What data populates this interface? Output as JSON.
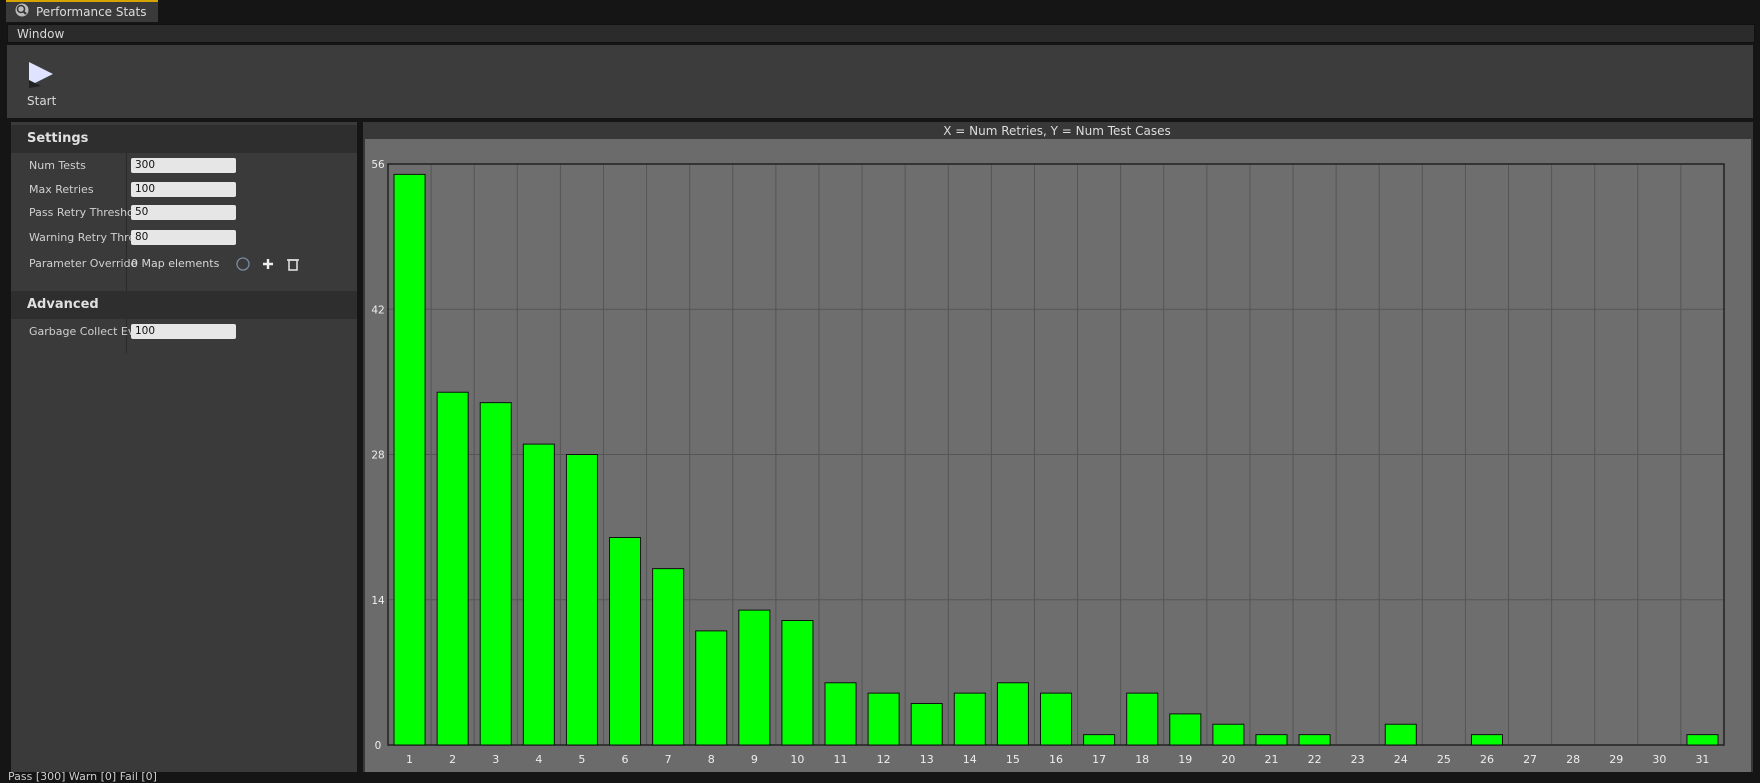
{
  "tab": "Performance Stats",
  "menu": [
    "Window"
  ],
  "toolbar": {
    "button": "Start"
  },
  "settings": {
    "header": "Settings",
    "rows": [
      {
        "label": "Num Tests",
        "value": "300"
      },
      {
        "label": "Max Retries",
        "value": "100"
      },
      {
        "label": "Pass Retry Thresho",
        "value": "50"
      },
      {
        "label": "Warning Retry Thres",
        "value": "80"
      }
    ],
    "override": {
      "label": "Parameter Override",
      "value": "0 Map elements"
    }
  },
  "advanced": {
    "header": "Advanced",
    "rows": [
      {
        "label": "Garbage Collect Eve",
        "value": "100"
      }
    ]
  },
  "status": "Pass [300] Warn [0] Fail [0]",
  "chart_data": {
    "type": "bar",
    "title": "X = Num Retries, Y = Num Test Cases",
    "categories": [
      "1",
      "2",
      "3",
      "4",
      "5",
      "6",
      "7",
      "8",
      "9",
      "10",
      "11",
      "12",
      "13",
      "14",
      "15",
      "16",
      "17",
      "18",
      "19",
      "20",
      "21",
      "22",
      "23",
      "24",
      "25",
      "26",
      "27",
      "28",
      "29",
      "30",
      "31"
    ],
    "values": [
      55,
      34,
      33,
      29,
      28,
      20,
      17,
      11,
      13,
      12,
      6,
      5,
      4,
      5,
      6,
      5,
      1,
      5,
      3,
      2,
      1,
      1,
      0,
      2,
      0,
      1,
      0,
      0,
      0,
      0,
      1
    ],
    "color": "#00ff00",
    "ylim": [
      0,
      56
    ],
    "yticks": [
      0,
      14,
      28,
      42,
      56
    ],
    "grid": true
  }
}
